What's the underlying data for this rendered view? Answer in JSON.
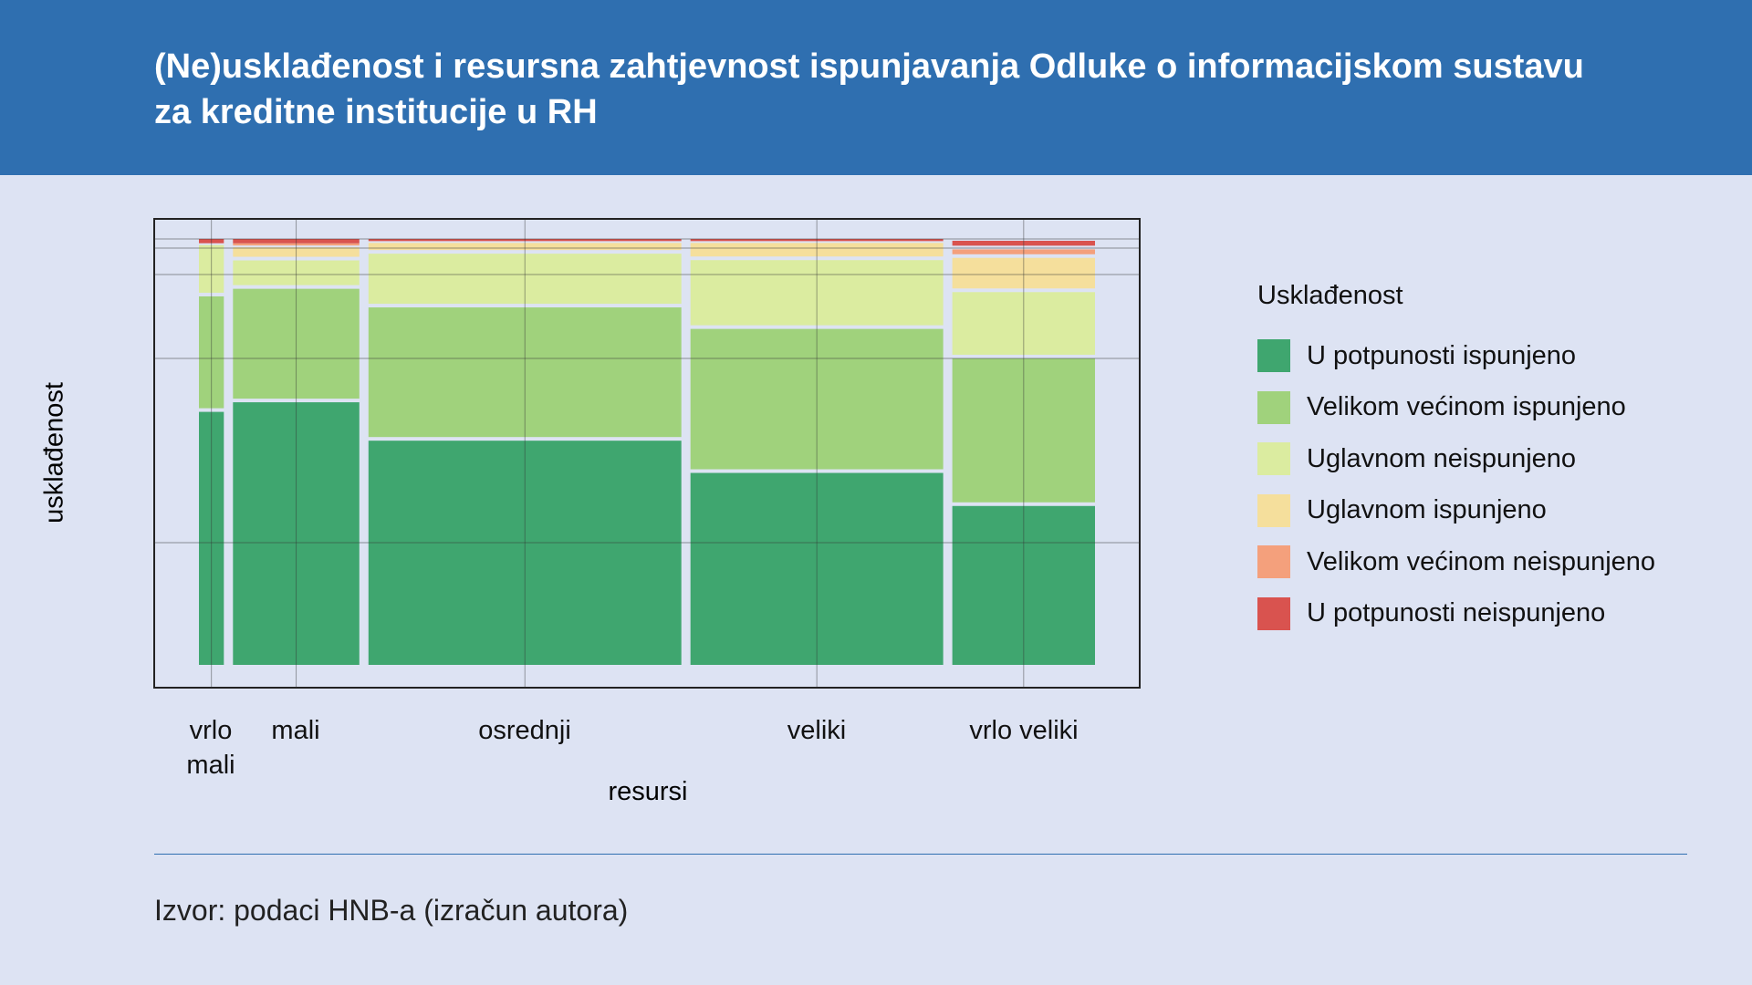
{
  "title": "(Ne)usklađenost i resursna zahtjevnost ispunjavanja Odluke o informacijskom sustavu za kreditne institucije u RH",
  "source": "Izvor: podaci HNB-a (izračun autora)",
  "chart_data": {
    "type": "mosaic",
    "xlabel": "resursi",
    "ylabel": "usklađenost",
    "legend_title": "Usklađenost",
    "legend_position": "right",
    "legend": [
      {
        "name": "U potpunosti ispunjeno",
        "color": "#3fa66f"
      },
      {
        "name": "Velikom većinom ispunjeno",
        "color": "#a0d27c"
      },
      {
        "name": "Uglavnom neispunjeno",
        "color": "#dbeca0"
      },
      {
        "name": "Uglavnom ispunjeno",
        "color": "#f5df9c"
      },
      {
        "name": "Velikom većinom neispunjeno",
        "color": "#f4a07c"
      },
      {
        "name": "U potpunosti neispunjeno",
        "color": "#d9534f"
      }
    ],
    "categories": [
      "vrlo mali",
      "mali",
      "osrednji",
      "veliki",
      "vrlo veliki"
    ],
    "category_share": [
      0.029,
      0.147,
      0.364,
      0.294,
      0.166
    ],
    "series_shares": [
      [
        0.6,
        0.27,
        0.12,
        0.0,
        0.0,
        0.01
      ],
      [
        0.61,
        0.26,
        0.065,
        0.03,
        0.005,
        0.01
      ],
      [
        0.53,
        0.31,
        0.125,
        0.025,
        0.0,
        0.005
      ],
      [
        0.455,
        0.335,
        0.16,
        0.04,
        0.0,
        0.005
      ],
      [
        0.38,
        0.345,
        0.155,
        0.08,
        0.02,
        0.02
      ]
    ]
  }
}
